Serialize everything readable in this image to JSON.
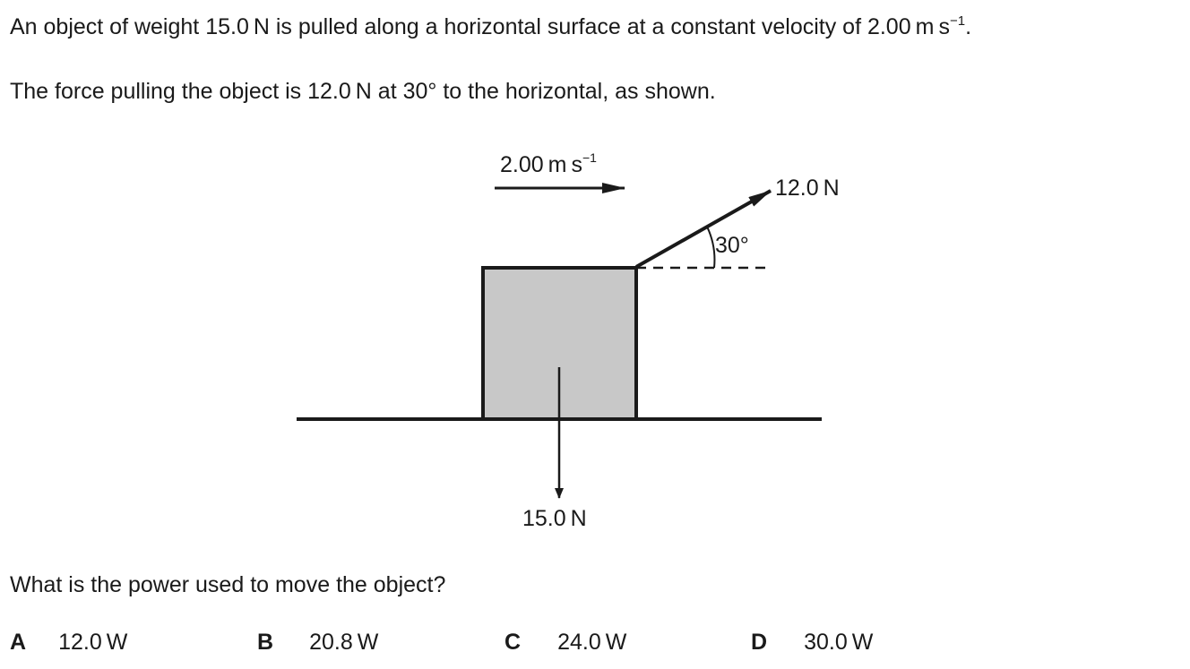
{
  "question": {
    "intro_before_sup": "An object of weight 15.0 N is pulled along a horizontal surface at a constant velocity of 2.00 m s",
    "intro_sup": "−1",
    "intro_after_sup": ".",
    "force_sentence": "The force pulling the object is 12.0 N at 30° to the horizontal, as shown.",
    "prompt": "What is the power used to move the object?"
  },
  "diagram": {
    "velocity_label": "2.00 m s",
    "velocity_sup": "−1",
    "pull_force_label": "12.0 N",
    "angle_label": "30°",
    "weight_label": "15.0 N"
  },
  "options": [
    {
      "letter": "A",
      "value": "12.0 W"
    },
    {
      "letter": "B",
      "value": "20.8 W"
    },
    {
      "letter": "C",
      "value": "24.0 W"
    },
    {
      "letter": "D",
      "value": "30.0 W"
    }
  ],
  "colors": {
    "block_fill": "#c8c8c8",
    "line": "#1a1a1a"
  }
}
